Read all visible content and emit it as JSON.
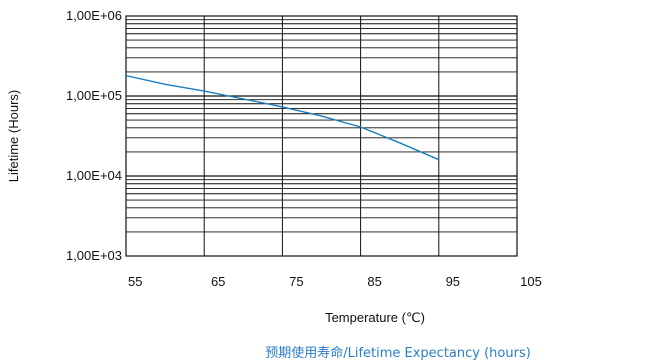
{
  "chart_data": {
    "type": "line",
    "title": "预期使用寿命/Lifetime Expectancy (hours)",
    "xlabel": "Temperature (℃)",
    "ylabel": "Lifetime (Hours)",
    "xlim": [
      55,
      105
    ],
    "ylim": [
      1000,
      1000000
    ],
    "yscale": "log",
    "x_ticks": [
      "55",
      "65",
      "75",
      "85",
      "95",
      "105"
    ],
    "y_ticks": [
      "1,00E+03",
      "1,00E+04",
      "1,00E+05",
      "1,00E+06"
    ],
    "grid": true,
    "line_color": "#1a7fc1",
    "series": [
      {
        "x": [
          55,
          60,
          65,
          70,
          75,
          80,
          85,
          90,
          95
        ],
        "y": [
          180000,
          140000,
          115000,
          92000,
          73000,
          56000,
          41000,
          26000,
          16000
        ]
      }
    ]
  }
}
